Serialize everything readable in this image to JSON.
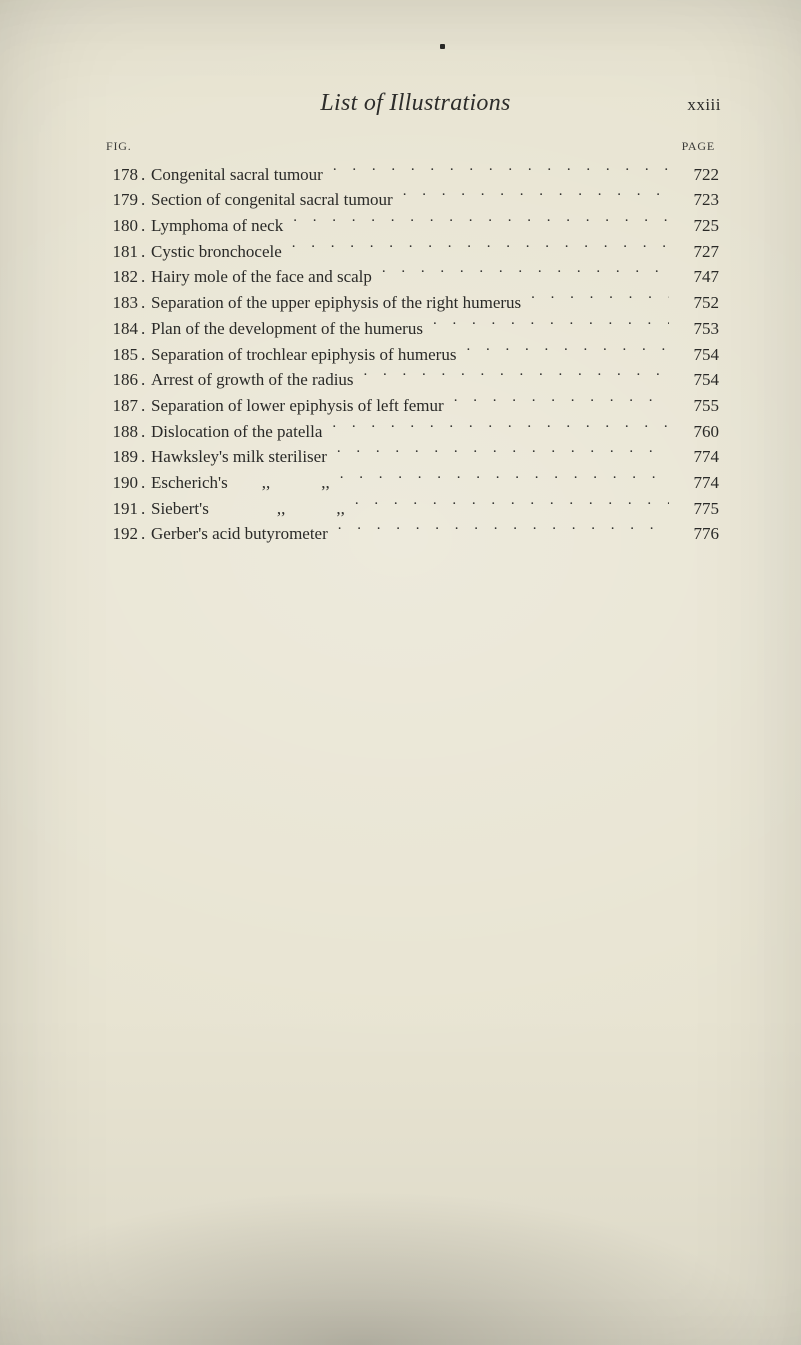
{
  "page": {
    "running_title": "List of Illustrations",
    "folio": "xxiii",
    "column_head_left": "FIG.",
    "column_head_right": "PAGE",
    "background_color": "#e8e4d2",
    "text_color": "#2a2a28",
    "title_fontsize_pt": 18,
    "body_fontsize_pt": 12.5,
    "font_family": "Times New Roman"
  },
  "entries": [
    {
      "fig": "178",
      "title": "Congenital sacral tumour",
      "page": "722"
    },
    {
      "fig": "179",
      "title": "Section of congenital sacral tumour",
      "page": "723"
    },
    {
      "fig": "180",
      "title": "Lymphoma of neck",
      "page": "725"
    },
    {
      "fig": "181",
      "title": "Cystic bronchocele",
      "page": "727"
    },
    {
      "fig": "182",
      "title": "Hairy mole of the face and scalp",
      "page": "747"
    },
    {
      "fig": "183",
      "title": "Separation of the upper epiphysis of the right humerus",
      "page": "752"
    },
    {
      "fig": "184",
      "title": "Plan of the development of the humerus",
      "page": "753"
    },
    {
      "fig": "185",
      "title": "Separation of trochlear epiphysis of humerus",
      "page": "754"
    },
    {
      "fig": "186",
      "title": "Arrest of growth of the radius",
      "page": "754"
    },
    {
      "fig": "187",
      "title": "Separation of lower epiphysis of left femur",
      "page": "755"
    },
    {
      "fig": "188",
      "title": "Dislocation of the patella",
      "page": "760"
    },
    {
      "fig": "189",
      "title": "Hawksley's milk steriliser",
      "page": "774"
    },
    {
      "fig": "190",
      "title": "Escherich's  ,,   ,,",
      "page": "774"
    },
    {
      "fig": "191",
      "title": "Siebert's    ,,   ,,",
      "page": "775"
    },
    {
      "fig": "192",
      "title": "Gerber's acid butyrometer",
      "page": "776"
    }
  ]
}
